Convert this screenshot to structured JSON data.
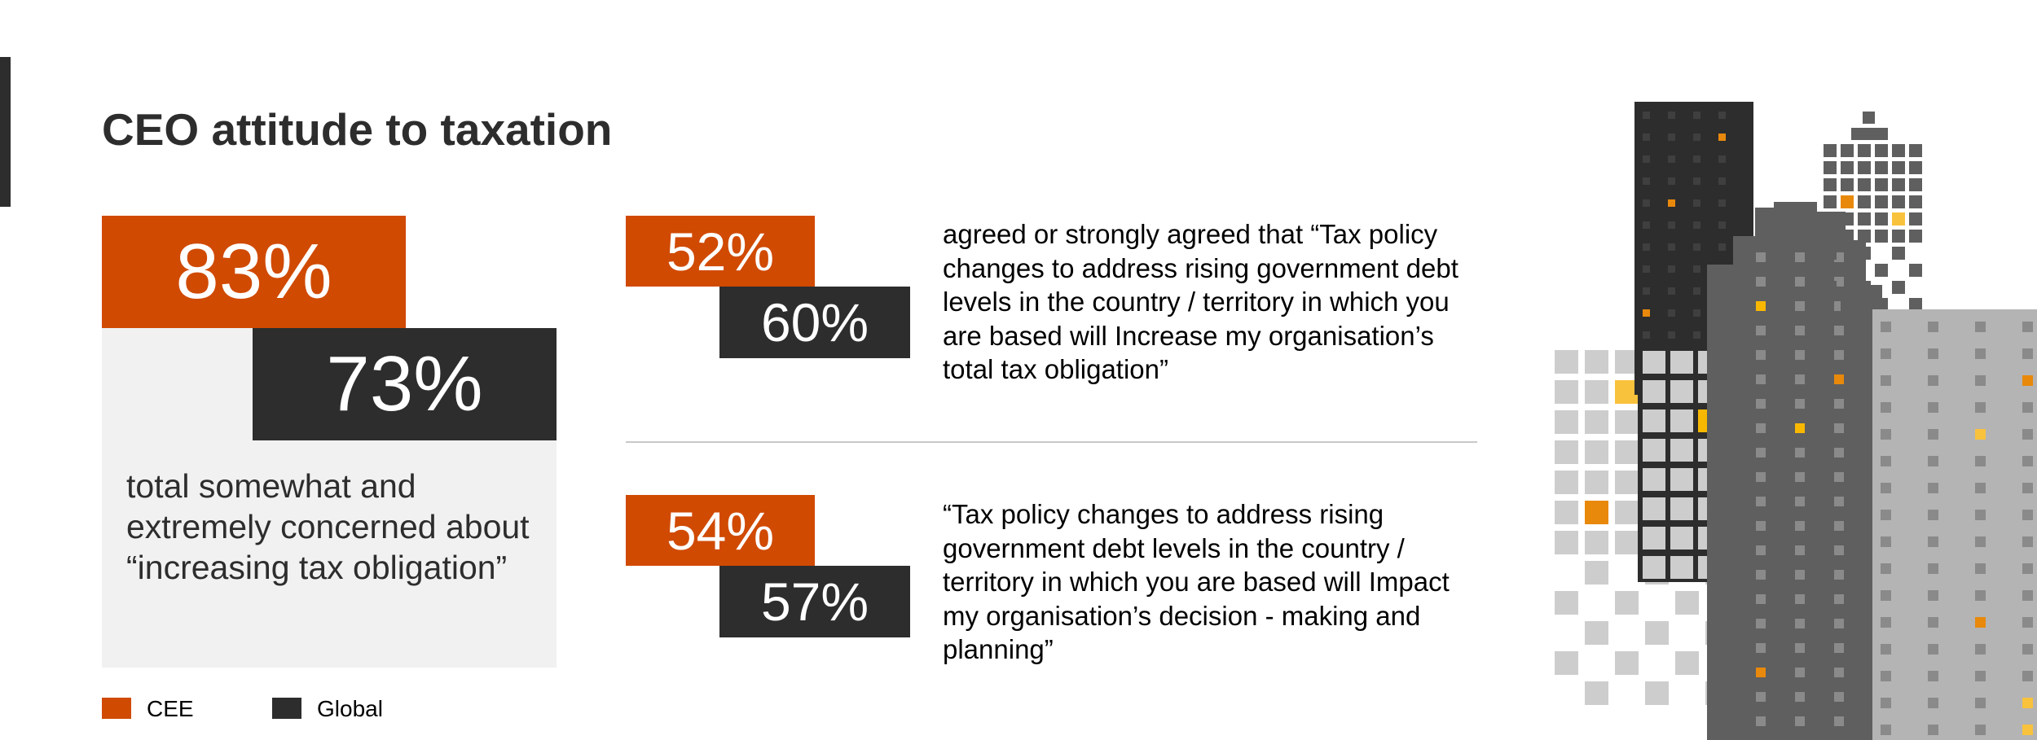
{
  "page": {
    "title": "CEO attitude to taxation"
  },
  "headline": {
    "cee_value": "83%",
    "global_value": "73%",
    "description": "total somewhat and extremely concerned about “increasing tax obligation”"
  },
  "stats": [
    {
      "cee_value": "52%",
      "global_value": "60%",
      "text": "agreed or strongly agreed that “Tax policy changes to address rising government debt levels in the country / territory in which you are based will Increase my organisation’s total tax obligation”"
    },
    {
      "cee_value": "54%",
      "global_value": "57%",
      "text": "“Tax policy changes to address rising government debt levels in the country / territory in which you are based will Impact my organisation’s decision - making and planning”"
    }
  ],
  "legend": {
    "cee_label": "CEE",
    "global_label": "Global"
  },
  "colors": {
    "cee": "#d04a02",
    "global": "#2d2d2d",
    "panel": "#f1f1f1",
    "divider": "#c8c8c8"
  },
  "illustration": {
    "icon": "city-skyline-illustration"
  }
}
